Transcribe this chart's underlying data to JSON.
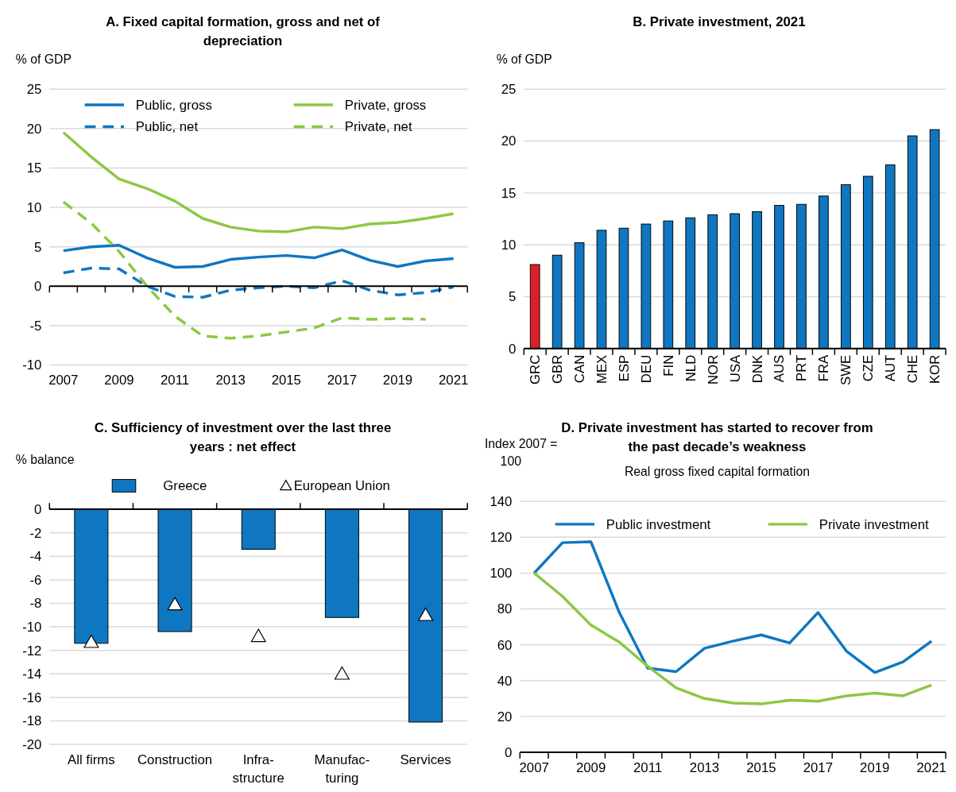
{
  "chart_data": [
    {
      "type": "line",
      "title": "A. Fixed capital formation, gross and net of depreciation",
      "ylabel": "% of GDP",
      "categories": [
        "2007",
        null,
        "2009",
        null,
        "2011",
        null,
        "2013",
        null,
        "2015",
        null,
        "2017",
        null,
        "2019",
        null,
        "2021"
      ],
      "ylim": [
        -10,
        25
      ],
      "yticks": [
        -10,
        -5,
        0,
        5,
        10,
        15,
        20,
        25
      ],
      "grid": "y",
      "legend": "top",
      "series": [
        {
          "name": "Public, gross",
          "color": "#0f77c1",
          "line_style": "solid",
          "values": [
            4.5,
            5.0,
            5.2,
            3.6,
            2.4,
            2.5,
            3.4,
            3.7,
            3.9,
            3.6,
            4.6,
            3.3,
            2.5,
            3.2,
            3.5
          ]
        },
        {
          "name": "Private, gross",
          "color": "#8cc841",
          "line_style": "solid",
          "values": [
            19.5,
            16.4,
            13.6,
            12.4,
            10.8,
            8.6,
            7.5,
            7.0,
            6.9,
            7.5,
            7.3,
            7.9,
            8.1,
            8.6,
            9.2
          ]
        },
        {
          "name": "Public, net",
          "color": "#0f77c1",
          "line_style": "dashed",
          "values": [
            1.7,
            2.3,
            2.2,
            0,
            -1.3,
            -1.4,
            -0.5,
            -0.2,
            0,
            -0.2,
            0.7,
            -0.5,
            -1.1,
            -0.8,
            -0.1
          ]
        },
        {
          "name": "Private, net",
          "color": "#8cc841",
          "line_style": "dashed",
          "values": [
            10.7,
            8.0,
            4.4,
            0,
            -3.8,
            -6.3,
            -6.6,
            -6.3,
            -5.8,
            -5.3,
            -4.0,
            -4.2,
            -4.1,
            -4.2,
            null
          ]
        }
      ]
    },
    {
      "type": "bar",
      "title": "B. Private investment, 2021",
      "ylabel": "% of GDP",
      "categories": [
        "GRC",
        "GBR",
        "CAN",
        "MEX",
        "ESP",
        "DEU",
        "FIN",
        "NLD",
        "NOR",
        "USA",
        "DNK",
        "AUS",
        "PRT",
        "FRA",
        "SWE",
        "CZE",
        "AUT",
        "CHE",
        "KOR"
      ],
      "values": [
        8.1,
        9.0,
        10.2,
        11.4,
        11.6,
        12.0,
        12.3,
        12.6,
        12.9,
        13.0,
        13.2,
        13.8,
        13.9,
        14.7,
        15.8,
        16.6,
        17.7,
        20.5,
        21.1
      ],
      "colors": [
        "#da2128",
        "#0f77c1",
        "#0f77c1",
        "#0f77c1",
        "#0f77c1",
        "#0f77c1",
        "#0f77c1",
        "#0f77c1",
        "#0f77c1",
        "#0f77c1",
        "#0f77c1",
        "#0f77c1",
        "#0f77c1",
        "#0f77c1",
        "#0f77c1",
        "#0f77c1",
        "#0f77c1",
        "#0f77c1",
        "#0f77c1"
      ],
      "ylim": [
        0,
        25
      ],
      "yticks": [
        0,
        5,
        10,
        15,
        20,
        25
      ],
      "grid": "y"
    },
    {
      "type": "bar",
      "title": "C. Sufficiency of investment over the last three years : net effect",
      "ylabel": "% balance",
      "categories": [
        "All firms",
        "Construction",
        "Infra-\nstructure",
        "Manufac-\nturing",
        "Services"
      ],
      "ylim": [
        -20,
        0
      ],
      "yticks": [
        -20,
        -18,
        -16,
        -14,
        -12,
        -10,
        -8,
        -6,
        -4,
        -2,
        0
      ],
      "grid": "y",
      "legend": "top",
      "series": [
        {
          "name": "Greece",
          "color": "#0f77c1",
          "values": [
            -11.4,
            -10.4,
            -3.4,
            -9.2,
            -18.1
          ]
        },
        {
          "name": "European Union",
          "type": "scatter",
          "marker": "triangle",
          "color": "#ffffff",
          "x": [
            "All firms",
            "Construction",
            "Infra-\nstructure",
            "Manufac-\nturing",
            "Services"
          ],
          "values": [
            -11.3,
            -8.1,
            -10.8,
            -14.0,
            -9.0
          ]
        }
      ]
    },
    {
      "type": "line",
      "title": "D. Private investment has started to recover from the past decade’s weakness",
      "subtitle": "Real gross fixed capital formation",
      "ylabel": "Index 2007 =\n100",
      "categories": [
        "2007",
        null,
        "2009",
        null,
        "2011",
        null,
        "2013",
        null,
        "2015",
        null,
        "2017",
        null,
        "2019",
        null,
        "2021"
      ],
      "ylim": [
        0,
        140
      ],
      "yticks": [
        0,
        20,
        40,
        60,
        80,
        100,
        120,
        140
      ],
      "grid": "y",
      "legend": "top",
      "series": [
        {
          "name": "Public investment",
          "color": "#0f77c1",
          "values": [
            100,
            117,
            117.5,
            78,
            47,
            45,
            58,
            62,
            65.5,
            61,
            78,
            56.5,
            44.5,
            50.5,
            62
          ]
        },
        {
          "name": "Private investment",
          "color": "#8cc841",
          "values": [
            100,
            87,
            71,
            61.5,
            48,
            36,
            30,
            27.5,
            27,
            29,
            28.5,
            31.5,
            33,
            31.5,
            37.5
          ]
        }
      ]
    }
  ]
}
